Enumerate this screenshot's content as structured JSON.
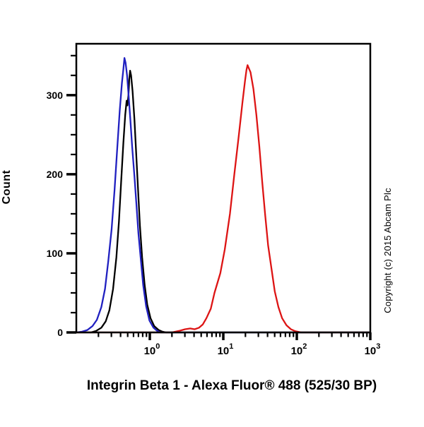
{
  "title": "Integrin Beta 1 - Alexa Fluor® 488 (525/30 BP)",
  "y_axis_label": "Count",
  "copyright": "Copyright (c) 2015 Abcam Plc",
  "colors": {
    "black_curve": "#000000",
    "blue_curve": "#2020c0",
    "red_curve": "#dd1414",
    "frame": "#000000",
    "background": "#ffffff"
  },
  "chart_data": {
    "type": "line",
    "title": "Integrin Beta 1 - Alexa Fluor® 488 (525/30 BP)",
    "xlabel": "",
    "ylabel": "Count",
    "x_scale": "log10",
    "x_range_log": [
      -1,
      3
    ],
    "x_tick_exponents": [
      0,
      1,
      2,
      3
    ],
    "x_tick_base": "10",
    "ylim": [
      0,
      365
    ],
    "y_major_ticks": [
      0,
      100,
      200,
      300
    ],
    "y_minor_step": 25,
    "grid": false,
    "legend": "none",
    "series": [
      {
        "name": "black-curve",
        "color": "#000000",
        "peak": {
          "x": 0.54,
          "count": 331
        },
        "points_logx_count": [
          [
            -1.0,
            0
          ],
          [
            -0.85,
            0
          ],
          [
            -0.8,
            0
          ],
          [
            -0.73,
            2
          ],
          [
            -0.66,
            6
          ],
          [
            -0.6,
            14
          ],
          [
            -0.55,
            28
          ],
          [
            -0.5,
            55
          ],
          [
            -0.455,
            95
          ],
          [
            -0.42,
            140
          ],
          [
            -0.39,
            190
          ],
          [
            -0.36,
            240
          ],
          [
            -0.335,
            275
          ],
          [
            -0.315,
            293
          ],
          [
            -0.305,
            287
          ],
          [
            -0.29,
            300
          ],
          [
            -0.28,
            320
          ],
          [
            -0.268,
            331
          ],
          [
            -0.255,
            325
          ],
          [
            -0.235,
            305
          ],
          [
            -0.21,
            270
          ],
          [
            -0.185,
            225
          ],
          [
            -0.16,
            180
          ],
          [
            -0.135,
            135
          ],
          [
            -0.105,
            95
          ],
          [
            -0.07,
            60
          ],
          [
            -0.035,
            35
          ],
          [
            0.01,
            18
          ],
          [
            0.06,
            8
          ],
          [
            0.12,
            3
          ],
          [
            0.17,
            1
          ],
          [
            0.22,
            0
          ],
          [
            3.0,
            0
          ]
        ]
      },
      {
        "name": "blue-curve",
        "color": "#2020c0",
        "peak": {
          "x": 0.45,
          "count": 347
        },
        "points_logx_count": [
          [
            -1.0,
            0
          ],
          [
            -0.92,
            1
          ],
          [
            -0.85,
            3
          ],
          [
            -0.78,
            8
          ],
          [
            -0.72,
            16
          ],
          [
            -0.66,
            32
          ],
          [
            -0.61,
            55
          ],
          [
            -0.565,
            90
          ],
          [
            -0.52,
            130
          ],
          [
            -0.48,
            180
          ],
          [
            -0.445,
            230
          ],
          [
            -0.41,
            280
          ],
          [
            -0.38,
            315
          ],
          [
            -0.36,
            333
          ],
          [
            -0.345,
            347
          ],
          [
            -0.33,
            341
          ],
          [
            -0.31,
            325
          ],
          [
            -0.29,
            302
          ],
          [
            -0.265,
            270
          ],
          [
            -0.24,
            235
          ],
          [
            -0.21,
            198
          ],
          [
            -0.185,
            165
          ],
          [
            -0.155,
            125
          ],
          [
            -0.12,
            90
          ],
          [
            -0.09,
            60
          ],
          [
            -0.05,
            33
          ],
          [
            -0.005,
            15
          ],
          [
            0.05,
            6
          ],
          [
            0.1,
            2
          ],
          [
            0.15,
            0
          ],
          [
            3.0,
            0
          ]
        ]
      },
      {
        "name": "red-curve",
        "color": "#dd1414",
        "peak": {
          "x": 21,
          "count": 338
        },
        "points_logx_count": [
          [
            -1.0,
            0
          ],
          [
            0.3,
            0
          ],
          [
            0.4,
            2
          ],
          [
            0.48,
            4
          ],
          [
            0.55,
            5
          ],
          [
            0.61,
            4
          ],
          [
            0.67,
            6
          ],
          [
            0.72,
            10
          ],
          [
            0.77,
            18
          ],
          [
            0.83,
            30
          ],
          [
            0.88,
            50
          ],
          [
            0.96,
            75
          ],
          [
            1.02,
            105
          ],
          [
            1.09,
            150
          ],
          [
            1.15,
            200
          ],
          [
            1.21,
            248
          ],
          [
            1.26,
            290
          ],
          [
            1.295,
            318
          ],
          [
            1.315,
            332
          ],
          [
            1.33,
            338
          ],
          [
            1.37,
            329
          ],
          [
            1.41,
            308
          ],
          [
            1.45,
            275
          ],
          [
            1.49,
            235
          ],
          [
            1.53,
            190
          ],
          [
            1.57,
            148
          ],
          [
            1.61,
            110
          ],
          [
            1.66,
            78
          ],
          [
            1.7,
            52
          ],
          [
            1.75,
            32
          ],
          [
            1.8,
            18
          ],
          [
            1.86,
            9
          ],
          [
            1.92,
            4
          ],
          [
            1.98,
            1.5
          ],
          [
            2.06,
            0
          ],
          [
            3.0,
            0
          ]
        ]
      }
    ]
  }
}
